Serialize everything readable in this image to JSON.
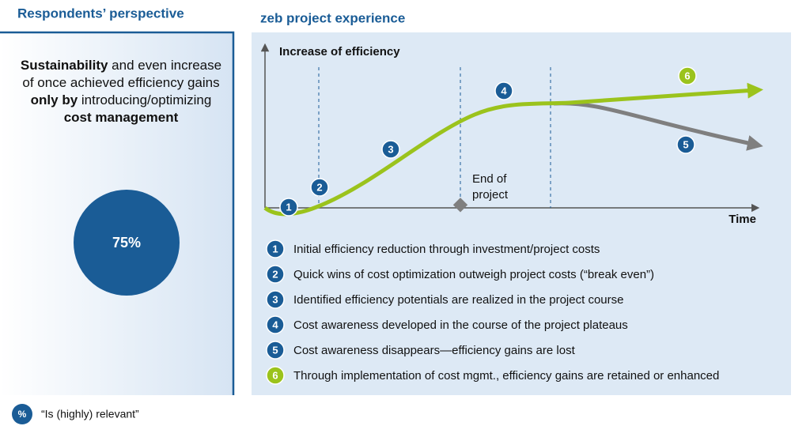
{
  "left_panel": {
    "title": "Respondents’ perspective",
    "statement": [
      {
        "text": "Sustainability",
        "bold": true
      },
      {
        "text": " and even increase of once achieved efficiency gains ",
        "bold": false
      },
      {
        "text": "only by",
        "bold": true
      },
      {
        "text": " introducing/optimizing ",
        "bold": false
      },
      {
        "text": "cost management",
        "bold": true
      }
    ],
    "share": "75%"
  },
  "key": {
    "symbol": "%",
    "text": "“Is (highly) relevant”"
  },
  "right_panel": {
    "title": "zeb project experience",
    "y_axis_label": "Increase of efficiency",
    "x_axis_label": "Time",
    "annotation": [
      "End of",
      "project"
    ],
    "phases": [
      {
        "number": "1",
        "color": "#1a5c96",
        "text": "Initial efficiency reduction through investment/project costs"
      },
      {
        "number": "2",
        "color": "#1a5c96",
        "text": "Quick wins of cost optimization outweigh project costs (“break even”)"
      },
      {
        "number": "3",
        "color": "#1a5c96",
        "text": "Identified efficiency potentials are realized in the project course"
      },
      {
        "number": "4",
        "color": "#1a5c96",
        "text": "Cost awareness developed in the course of the project plateaus"
      },
      {
        "number": "5",
        "color": "#1a5c96",
        "text": "Cost awareness disappears—efficiency gains are lost"
      },
      {
        "number": "6",
        "color": "#9bc31c",
        "text": "Through implementation of cost mgmt., efficiency gains are retained or enhanced"
      }
    ]
  }
}
